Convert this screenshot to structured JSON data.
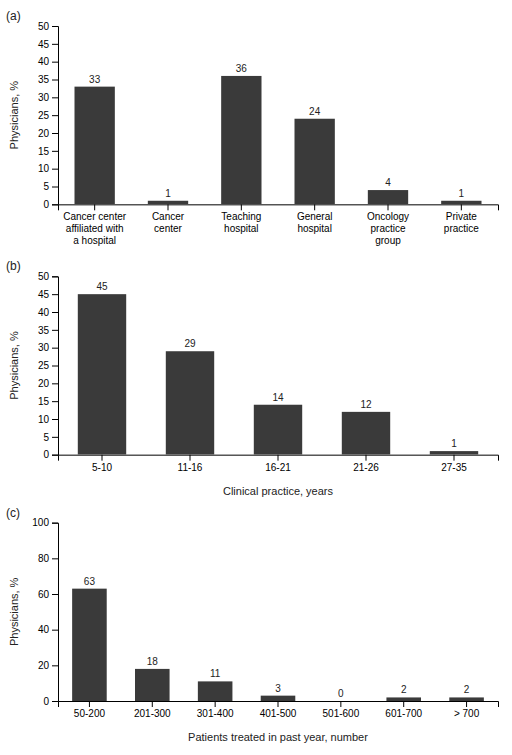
{
  "chart_data": [
    {
      "type": "bar",
      "title": "(a)",
      "categories": [
        "Cancer center\naffiliated with\na hospital",
        "Cancer\ncenter",
        "Teaching\nhospital",
        "General\nhospital",
        "Oncology\npractice\ngroup",
        "Private\npractice"
      ],
      "values": [
        33,
        1,
        36,
        24,
        4,
        1
      ],
      "ylabel": "Physicians, %",
      "ylim": [
        0,
        50
      ],
      "yticks": [
        0,
        5,
        10,
        15,
        20,
        25,
        30,
        35,
        40,
        45,
        50
      ],
      "color": "#3a3a3a",
      "data_labels": true,
      "grid": false
    },
    {
      "type": "bar",
      "title": "(b)",
      "categories": [
        "5-10",
        "11-16",
        "16-21",
        "21-26",
        "27-35"
      ],
      "values": [
        45,
        29,
        14,
        12,
        1
      ],
      "ylabel": "Physicians, %",
      "xlabel": "Clinical practice,  years",
      "ylim": [
        0,
        50
      ],
      "yticks": [
        0,
        5,
        10,
        15,
        20,
        25,
        30,
        35,
        40,
        45,
        50
      ],
      "color": "#3a3a3a",
      "data_labels": true,
      "grid": false
    },
    {
      "type": "bar",
      "title": "(c)",
      "categories": [
        "50-200",
        "201-300",
        "301-400",
        "401-500",
        "501-600",
        "601-700",
        "> 700"
      ],
      "values": [
        63,
        18,
        11,
        3,
        0,
        2,
        2
      ],
      "ylabel": "Physicians, %",
      "xlabel": "Patients treated  in past year, number",
      "ylim": [
        0,
        100
      ],
      "yticks": [
        0,
        20,
        40,
        60,
        80,
        100
      ],
      "color": "#3a3a3a",
      "data_labels": true,
      "grid": false
    }
  ]
}
